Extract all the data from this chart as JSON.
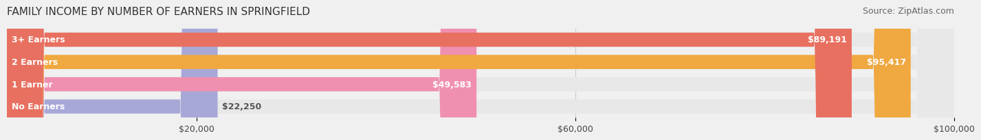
{
  "title": "FAMILY INCOME BY NUMBER OF EARNERS IN SPRINGFIELD",
  "source": "Source: ZipAtlas.com",
  "categories": [
    "No Earners",
    "1 Earner",
    "2 Earners",
    "3+ Earners"
  ],
  "values": [
    22250,
    49583,
    95417,
    89191
  ],
  "bar_colors": [
    "#a8a8d8",
    "#f090b0",
    "#f0a840",
    "#e87060"
  ],
  "bar_labels": [
    "$22,250",
    "$49,583",
    "$95,417",
    "$89,191"
  ],
  "xlim": [
    0,
    100000
  ],
  "xticks": [
    20000,
    60000,
    100000
  ],
  "xtick_labels": [
    "$20,000",
    "$60,000",
    "$100,000"
  ],
  "background_color": "#f0f0f0",
  "bar_bg_color": "#e8e8e8",
  "title_fontsize": 11,
  "source_fontsize": 9,
  "label_fontsize": 9,
  "tick_fontsize": 9
}
